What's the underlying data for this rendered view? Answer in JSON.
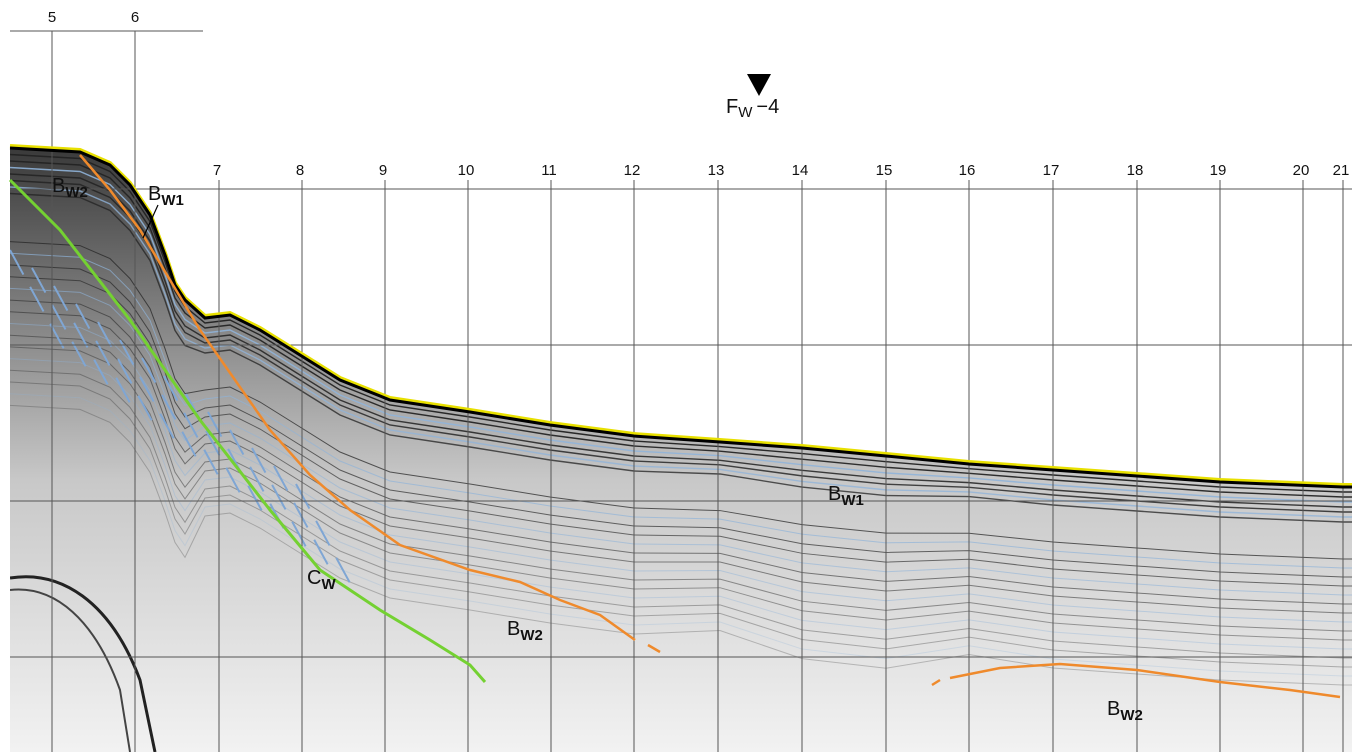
{
  "shotpoints": [
    "5",
    "6",
    "7",
    "8",
    "9",
    "10",
    "11",
    "12",
    "13",
    "14",
    "15",
    "16",
    "17",
    "18",
    "19",
    "20",
    "21"
  ],
  "fault": {
    "main": "F",
    "sub": "W",
    "suffix": "−4"
  },
  "labels": [
    {
      "main": "B",
      "sub": "W2"
    },
    {
      "main": "B",
      "sub": "W1"
    },
    {
      "main": "B",
      "sub": "W1"
    },
    {
      "main": "C",
      "sub": "W"
    },
    {
      "main": "B",
      "sub": "W2"
    },
    {
      "main": "B",
      "sub": "W2"
    }
  ]
}
